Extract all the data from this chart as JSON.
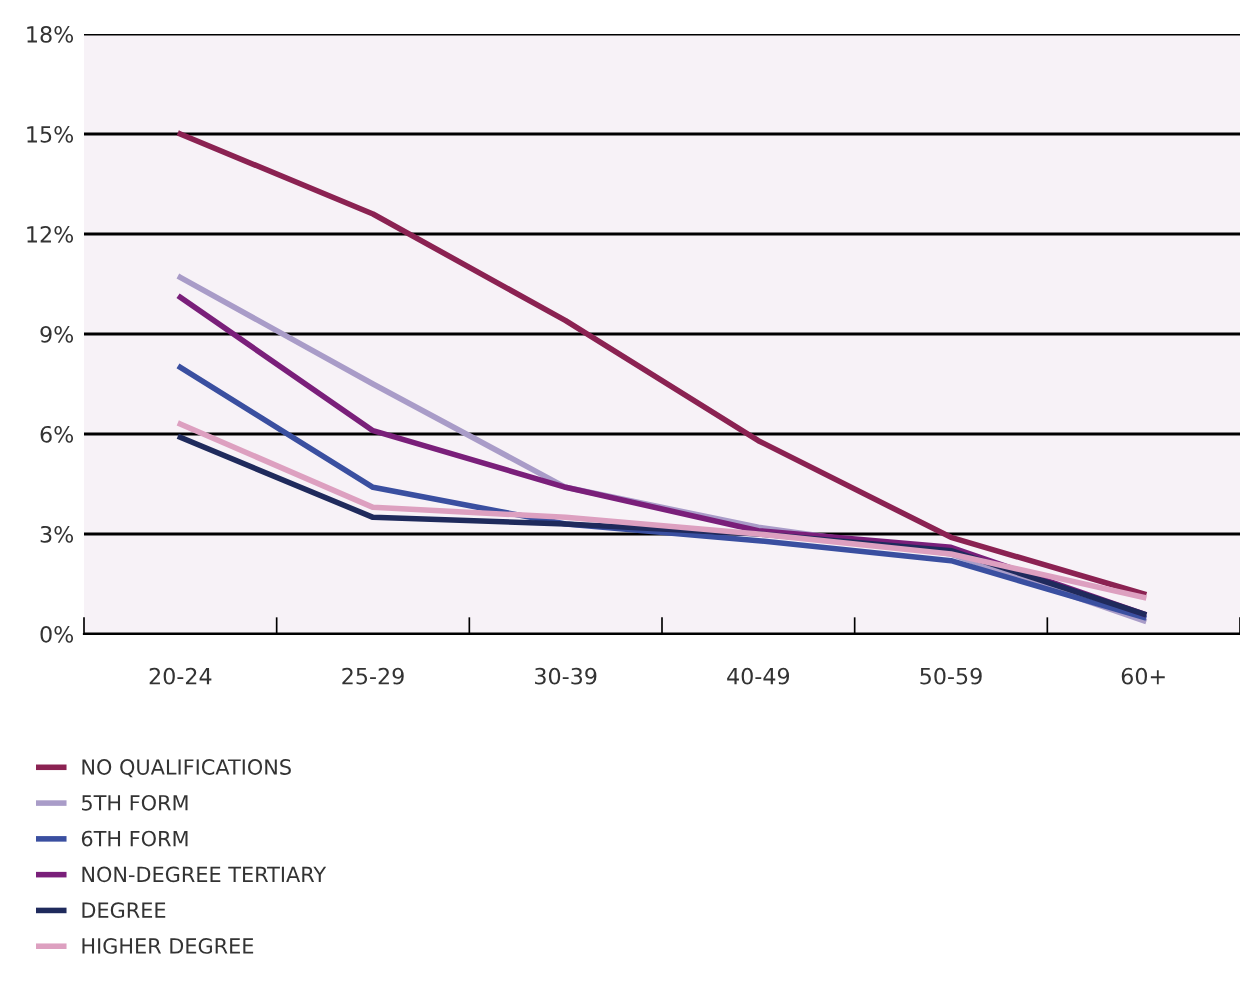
{
  "chart_data": {
    "type": "line",
    "categories": [
      "20-24",
      "25-29",
      "30-39",
      "40-49",
      "50-59",
      "60+"
    ],
    "series": [
      {
        "name": "NO QUALIFICATIONS",
        "color": "#8b2252",
        "values": [
          15.0,
          12.6,
          9.4,
          5.8,
          2.9,
          1.2
        ]
      },
      {
        "name": "5TH FORM",
        "color": "#a99cc8",
        "values": [
          10.7,
          7.5,
          4.4,
          3.2,
          2.4,
          0.4
        ]
      },
      {
        "name": "6TH FORM",
        "color": "#3a4fa0",
        "values": [
          8.0,
          4.4,
          3.3,
          2.8,
          2.2,
          0.5
        ]
      },
      {
        "name": "NON-DEGREE TERTIARY",
        "color": "#7a1f7a",
        "values": [
          10.1,
          6.1,
          4.4,
          3.1,
          2.6,
          0.6
        ]
      },
      {
        "name": "DEGREE",
        "color": "#1f2a5c",
        "values": [
          5.9,
          3.5,
          3.3,
          3.0,
          2.5,
          0.6
        ]
      },
      {
        "name": "HIGHER DEGREE",
        "color": "#dda0c0",
        "values": [
          6.3,
          3.8,
          3.5,
          3.0,
          2.4,
          1.1
        ]
      }
    ],
    "ylim": [
      0,
      18
    ],
    "yticks": [
      {
        "value": 0,
        "label": "0%"
      },
      {
        "value": 3,
        "label": "3%"
      },
      {
        "value": 6,
        "label": "6%"
      },
      {
        "value": 9,
        "label": "9%"
      },
      {
        "value": 12,
        "label": "12%"
      },
      {
        "value": 15,
        "label": "15%"
      },
      {
        "value": 18,
        "label": "18%"
      }
    ],
    "grid": "y",
    "legend": "bottom left",
    "marker": "none",
    "line_style": "solid"
  }
}
